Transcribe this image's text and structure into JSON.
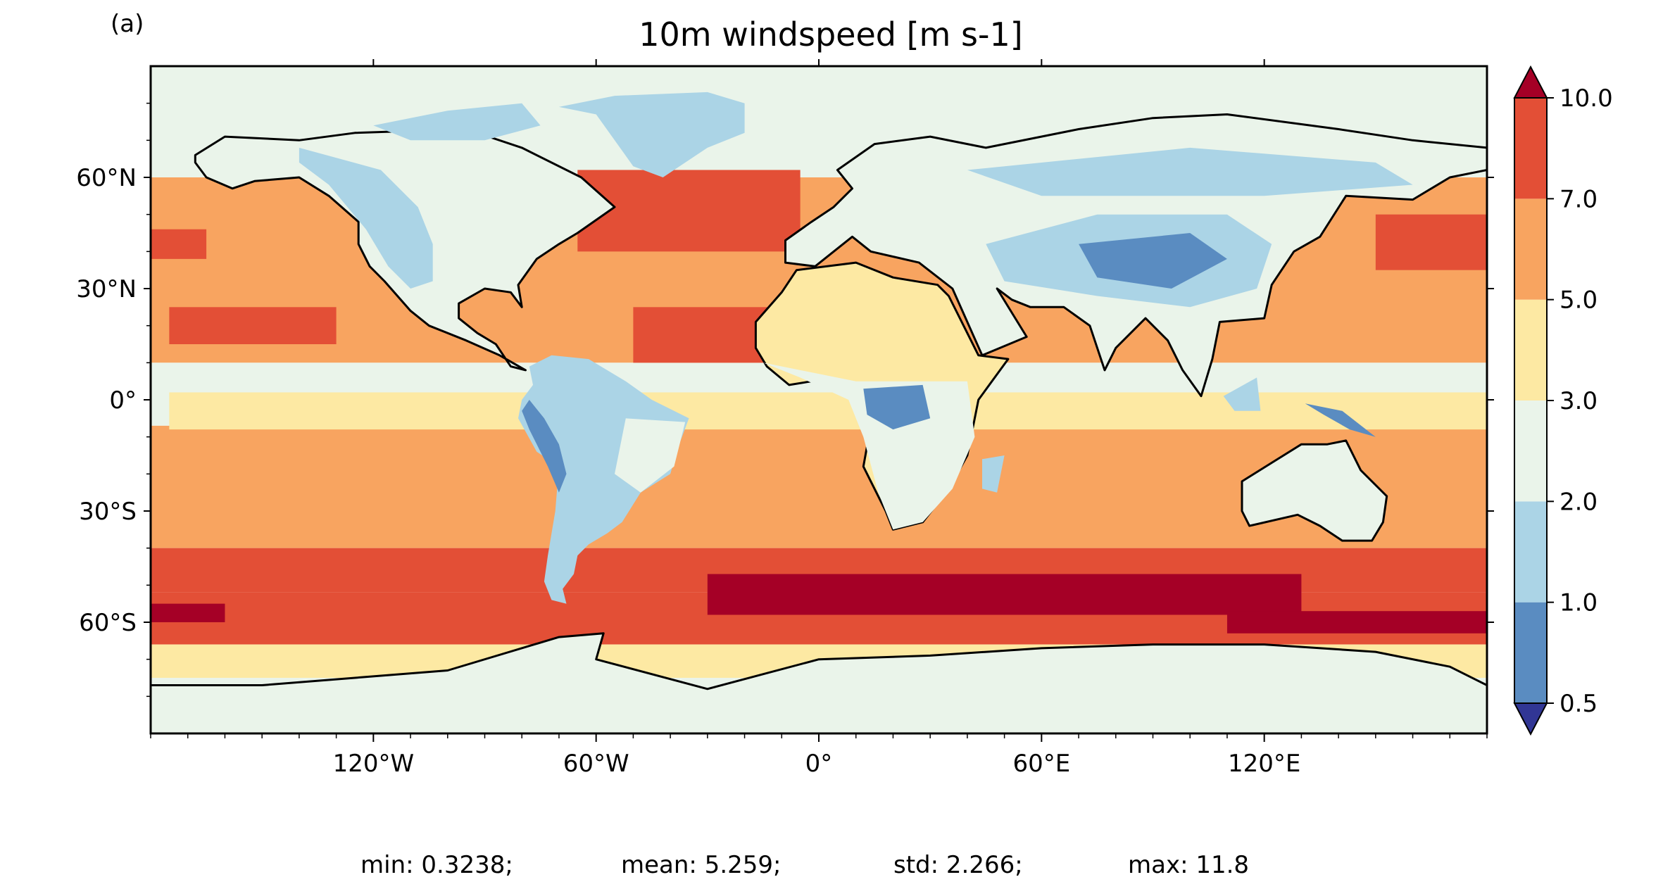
{
  "panel_label": "(a)",
  "title": "10m windspeed [m s-1]",
  "map": {
    "projection": "PlateCarree",
    "lon_range": [
      -180,
      180
    ],
    "lat_range": [
      -90,
      90
    ],
    "lon_ticks": [
      {
        "value": -120,
        "label": "120°W"
      },
      {
        "value": -60,
        "label": "60°W"
      },
      {
        "value": 0,
        "label": "0°"
      },
      {
        "value": 60,
        "label": "60°E"
      },
      {
        "value": 120,
        "label": "120°E"
      }
    ],
    "lat_ticks": [
      {
        "value": 60,
        "label": "60°N"
      },
      {
        "value": 30,
        "label": "30°N"
      },
      {
        "value": 0,
        "label": "0°"
      },
      {
        "value": -30,
        "label": "30°S"
      },
      {
        "value": -60,
        "label": "60°S"
      }
    ],
    "zonal_bands": [
      {
        "lat": [
          60,
          90
        ],
        "level": 3
      },
      {
        "lat": [
          30,
          60
        ],
        "level": 5
      },
      {
        "lat": [
          10,
          30
        ],
        "level": 5
      },
      {
        "lat": [
          -7,
          10
        ],
        "level": 3
      },
      {
        "lat": [
          -30,
          -7
        ],
        "level": 5
      },
      {
        "lat": [
          -40,
          -30
        ],
        "level": 5
      },
      {
        "lat": [
          -52,
          -40
        ],
        "level": 6
      },
      {
        "lat": [
          -66,
          -52
        ],
        "level": 6
      },
      {
        "lat": [
          -75,
          -66
        ],
        "level": 4
      },
      {
        "lat": [
          -90,
          -75
        ],
        "level": 3
      }
    ],
    "patches": [
      {
        "lon": [
          -175,
          -130
        ],
        "lat": [
          15,
          25
        ],
        "level": 6
      },
      {
        "lon": [
          -50,
          -10
        ],
        "lat": [
          10,
          25
        ],
        "level": 6
      },
      {
        "lon": [
          -65,
          -5
        ],
        "lat": [
          40,
          62
        ],
        "level": 6
      },
      {
        "lon": [
          -180,
          -165
        ],
        "lat": [
          38,
          46
        ],
        "level": 6
      },
      {
        "lon": [
          150,
          180
        ],
        "lat": [
          35,
          50
        ],
        "level": 6
      },
      {
        "lon": [
          -30,
          130
        ],
        "lat": [
          -58,
          -47
        ],
        "level": 7
      },
      {
        "lon": [
          110,
          180
        ],
        "lat": [
          -63,
          -57
        ],
        "level": 7
      },
      {
        "lon": [
          -180,
          -160
        ],
        "lat": [
          -60,
          -55
        ],
        "level": 7
      },
      {
        "lon": [
          -175,
          180
        ],
        "lat": [
          -8,
          2
        ],
        "level": 4
      }
    ],
    "land": [
      {
        "name": "North America",
        "level": 3,
        "points": [
          [
            -168,
            66
          ],
          [
            -160,
            71
          ],
          [
            -140,
            70
          ],
          [
            -125,
            72
          ],
          [
            -95,
            73
          ],
          [
            -80,
            68
          ],
          [
            -64,
            60
          ],
          [
            -55,
            52
          ],
          [
            -65,
            45
          ],
          [
            -70,
            42
          ],
          [
            -76,
            38
          ],
          [
            -81,
            31
          ],
          [
            -80,
            25
          ],
          [
            -83,
            29
          ],
          [
            -90,
            30
          ],
          [
            -97,
            26
          ],
          [
            -97,
            22
          ],
          [
            -92,
            18
          ],
          [
            -87,
            15
          ],
          [
            -83,
            9
          ],
          [
            -79,
            8
          ],
          [
            -86,
            12
          ],
          [
            -95,
            16
          ],
          [
            -105,
            20
          ],
          [
            -110,
            24
          ],
          [
            -117,
            32
          ],
          [
            -121,
            36
          ],
          [
            -124,
            42
          ],
          [
            -124,
            48
          ],
          [
            -132,
            55
          ],
          [
            -140,
            60
          ],
          [
            -152,
            59
          ],
          [
            -158,
            57
          ],
          [
            -165,
            60
          ],
          [
            -168,
            64
          ]
        ]
      },
      {
        "name": "Rockies",
        "level": 2,
        "points": [
          [
            -140,
            68
          ],
          [
            -118,
            62
          ],
          [
            -108,
            52
          ],
          [
            -104,
            42
          ],
          [
            -104,
            32
          ],
          [
            -110,
            30
          ],
          [
            -116,
            36
          ],
          [
            -122,
            46
          ],
          [
            -132,
            58
          ],
          [
            -140,
            64
          ]
        ]
      },
      {
        "name": "Greenland",
        "level": 2,
        "points": [
          [
            -55,
            82
          ],
          [
            -30,
            83
          ],
          [
            -20,
            80
          ],
          [
            -20,
            72
          ],
          [
            -30,
            68
          ],
          [
            -42,
            60
          ],
          [
            -50,
            63
          ],
          [
            -55,
            70
          ],
          [
            -60,
            77
          ],
          [
            -70,
            79
          ]
        ]
      },
      {
        "name": "Arctic Archipelago",
        "level": 2,
        "points": [
          [
            -120,
            74
          ],
          [
            -100,
            78
          ],
          [
            -80,
            80
          ],
          [
            -75,
            74
          ],
          [
            -90,
            70
          ],
          [
            -110,
            70
          ]
        ]
      },
      {
        "name": "South America",
        "level": 2,
        "points": [
          [
            -78,
            9
          ],
          [
            -72,
            12
          ],
          [
            -62,
            11
          ],
          [
            -52,
            5
          ],
          [
            -45,
            0
          ],
          [
            -35,
            -5
          ],
          [
            -38,
            -13
          ],
          [
            -40,
            -20
          ],
          [
            -48,
            -25
          ],
          [
            -53,
            -33
          ],
          [
            -57,
            -36
          ],
          [
            -62,
            -39
          ],
          [
            -65,
            -42
          ],
          [
            -66,
            -47
          ],
          [
            -69,
            -51
          ],
          [
            -68,
            -55
          ],
          [
            -72,
            -54
          ],
          [
            -74,
            -49
          ],
          [
            -73,
            -42
          ],
          [
            -71,
            -30
          ],
          [
            -70,
            -18
          ],
          [
            -76,
            -14
          ],
          [
            -81,
            -5
          ],
          [
            -80,
            0
          ],
          [
            -77,
            4
          ]
        ]
      },
      {
        "name": "Brazil highlands",
        "level": 3,
        "points": [
          [
            -52,
            -5
          ],
          [
            -36,
            -6
          ],
          [
            -39,
            -18
          ],
          [
            -48,
            -25
          ],
          [
            -55,
            -20
          ]
        ]
      },
      {
        "name": "Andes",
        "level": 1,
        "points": [
          [
            -78,
            0
          ],
          [
            -74,
            -5
          ],
          [
            -70,
            -12
          ],
          [
            -68,
            -20
          ],
          [
            -70,
            -25
          ],
          [
            -73,
            -18
          ],
          [
            -78,
            -8
          ],
          [
            -80,
            -3
          ]
        ]
      },
      {
        "name": "Africa",
        "level": 4,
        "points": [
          [
            -17,
            21
          ],
          [
            -10,
            29
          ],
          [
            -6,
            35
          ],
          [
            10,
            37
          ],
          [
            20,
            33
          ],
          [
            32,
            31
          ],
          [
            35,
            28
          ],
          [
            43,
            12
          ],
          [
            51,
            11
          ],
          [
            43,
            0
          ],
          [
            40,
            -15
          ],
          [
            35,
            -24
          ],
          [
            28,
            -33
          ],
          [
            20,
            -35
          ],
          [
            18,
            -30
          ],
          [
            12,
            -18
          ],
          [
            14,
            -7
          ],
          [
            9,
            -1
          ],
          [
            8,
            4
          ],
          [
            -2,
            5
          ],
          [
            -8,
            4
          ],
          [
            -14,
            9
          ],
          [
            -17,
            14
          ]
        ]
      },
      {
        "name": "Central Africa",
        "level": 3,
        "points": [
          [
            -15,
            10
          ],
          [
            10,
            5
          ],
          [
            40,
            5
          ],
          [
            42,
            -10
          ],
          [
            36,
            -24
          ],
          [
            28,
            -33
          ],
          [
            20,
            -35
          ],
          [
            16,
            -25
          ],
          [
            12,
            -10
          ],
          [
            8,
            0
          ],
          [
            -5,
            6
          ]
        ]
      },
      {
        "name": "Congo basin",
        "level": 1,
        "points": [
          [
            12,
            3
          ],
          [
            28,
            4
          ],
          [
            30,
            -5
          ],
          [
            20,
            -8
          ],
          [
            13,
            -4
          ]
        ]
      },
      {
        "name": "Madagascar",
        "level": 2,
        "points": [
          [
            44,
            -16
          ],
          [
            50,
            -15
          ],
          [
            48,
            -25
          ],
          [
            44,
            -24
          ]
        ]
      },
      {
        "name": "Eurasia",
        "level": 3,
        "points": [
          [
            -9,
            37
          ],
          [
            -9,
            43
          ],
          [
            -2,
            48
          ],
          [
            4,
            52
          ],
          [
            9,
            57
          ],
          [
            5,
            62
          ],
          [
            15,
            69
          ],
          [
            30,
            71
          ],
          [
            45,
            68
          ],
          [
            70,
            73
          ],
          [
            90,
            76
          ],
          [
            110,
            77
          ],
          [
            140,
            73
          ],
          [
            160,
            70
          ],
          [
            180,
            68
          ],
          [
            180,
            62
          ],
          [
            170,
            60
          ],
          [
            160,
            54
          ],
          [
            142,
            55
          ],
          [
            135,
            44
          ],
          [
            128,
            40
          ],
          [
            122,
            31
          ],
          [
            120,
            22
          ],
          [
            108,
            21
          ],
          [
            106,
            11
          ],
          [
            103,
            1
          ],
          [
            98,
            8
          ],
          [
            94,
            16
          ],
          [
            88,
            22
          ],
          [
            80,
            14
          ],
          [
            77,
            8
          ],
          [
            73,
            20
          ],
          [
            66,
            25
          ],
          [
            57,
            25
          ],
          [
            52,
            27
          ],
          [
            48,
            30
          ],
          [
            56,
            17
          ],
          [
            44,
            12
          ],
          [
            36,
            30
          ],
          [
            27,
            37
          ],
          [
            14,
            40
          ],
          [
            9,
            44
          ],
          [
            -1,
            36
          ]
        ]
      },
      {
        "name": "Tibet Mongolia",
        "level": 2,
        "points": [
          [
            45,
            42
          ],
          [
            75,
            50
          ],
          [
            110,
            50
          ],
          [
            122,
            42
          ],
          [
            118,
            30
          ],
          [
            100,
            25
          ],
          [
            75,
            28
          ],
          [
            50,
            32
          ]
        ]
      },
      {
        "name": "Tibet core",
        "level": 1,
        "points": [
          [
            70,
            42
          ],
          [
            100,
            45
          ],
          [
            110,
            38
          ],
          [
            95,
            30
          ],
          [
            75,
            33
          ]
        ]
      },
      {
        "name": "Siberia",
        "level": 2,
        "points": [
          [
            40,
            62
          ],
          [
            100,
            68
          ],
          [
            150,
            64
          ],
          [
            160,
            58
          ],
          [
            120,
            55
          ],
          [
            60,
            55
          ]
        ]
      },
      {
        "name": "Australia",
        "level": 3,
        "points": [
          [
            114,
            -22
          ],
          [
            122,
            -17
          ],
          [
            130,
            -12
          ],
          [
            137,
            -12
          ],
          [
            142,
            -11
          ],
          [
            146,
            -19
          ],
          [
            153,
            -26
          ],
          [
            152,
            -33
          ],
          [
            149,
            -38
          ],
          [
            141,
            -38
          ],
          [
            135,
            -34
          ],
          [
            129,
            -31
          ],
          [
            116,
            -34
          ],
          [
            114,
            -30
          ]
        ]
      },
      {
        "name": "Borneo New Guinea",
        "level": 2,
        "points": [
          [
            109,
            1
          ],
          [
            118,
            6
          ],
          [
            119,
            -3
          ],
          [
            112,
            -3
          ]
        ]
      },
      {
        "name": "New Guinea",
        "level": 1,
        "points": [
          [
            131,
            -1
          ],
          [
            141,
            -3
          ],
          [
            150,
            -10
          ],
          [
            143,
            -8
          ],
          [
            136,
            -4
          ]
        ]
      },
      {
        "name": "Antarctica",
        "level": 3,
        "points": [
          [
            -180,
            -77
          ],
          [
            -150,
            -77
          ],
          [
            -100,
            -73
          ],
          [
            -70,
            -64
          ],
          [
            -58,
            -63
          ],
          [
            -60,
            -70
          ],
          [
            -30,
            -78
          ],
          [
            0,
            -70
          ],
          [
            30,
            -69
          ],
          [
            60,
            -67
          ],
          [
            90,
            -66
          ],
          [
            120,
            -66
          ],
          [
            150,
            -68
          ],
          [
            170,
            -72
          ],
          [
            180,
            -77
          ],
          [
            180,
            -90
          ],
          [
            -180,
            -90
          ]
        ]
      }
    ]
  },
  "colorbar": {
    "levels": [
      0.5,
      1.0,
      2.0,
      3.0,
      5.0,
      7.0,
      10.0
    ],
    "tick_labels": [
      "0.5",
      "1.0",
      "2.0",
      "3.0",
      "5.0",
      "7.0",
      "10.0"
    ],
    "colors": [
      "#313695",
      "#5a8cc1",
      "#abd4e6",
      "#eaf4ea",
      "#fde9a3",
      "#f8a460",
      "#e34f36",
      "#a50026"
    ],
    "extend": "both"
  },
  "stats": [
    "min: 0.3238;",
    "mean: 5.259;",
    "std: 2.266;",
    "max: 11.8"
  ]
}
